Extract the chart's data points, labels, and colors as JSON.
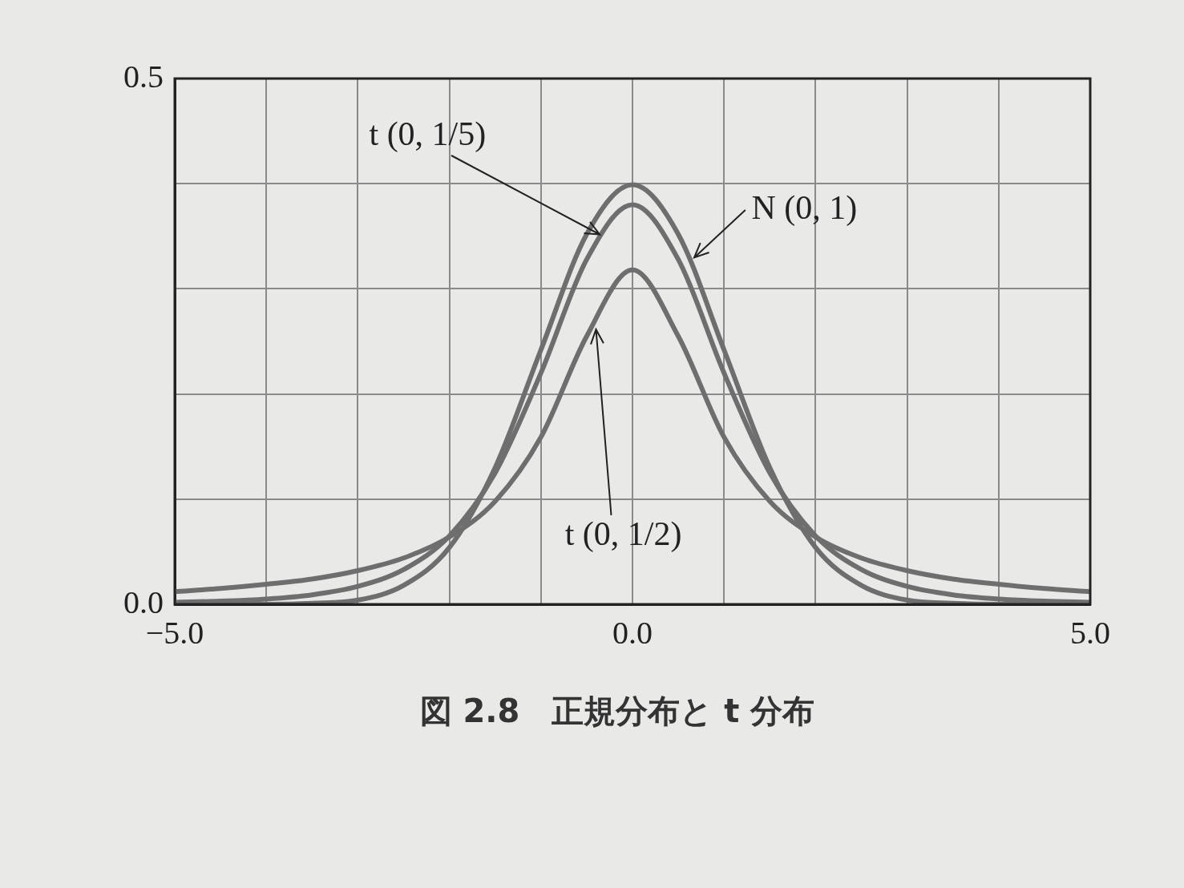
{
  "chart_data": {
    "type": "line",
    "title": "図 2.8　正規分布と t 分布",
    "x": [
      -5,
      -4.5,
      -4,
      -3.5,
      -3,
      -2.5,
      -2,
      -1.5,
      -1,
      -0.5,
      0,
      0.5,
      1,
      1.5,
      2,
      2.5,
      3,
      3.5,
      4,
      4.5,
      5
    ],
    "series": [
      {
        "name": "N (0, 1)",
        "color": "#6e6e6e",
        "values": [
          0.0,
          0.0,
          0.0,
          0.001,
          0.004,
          0.018,
          0.054,
          0.13,
          0.242,
          0.352,
          0.399,
          0.352,
          0.242,
          0.13,
          0.054,
          0.018,
          0.004,
          0.001,
          0.0,
          0.0,
          0.0
        ]
      },
      {
        "name": "t (0, 1/5)",
        "color": "#6e6e6e",
        "values": [
          0.002,
          0.003,
          0.005,
          0.009,
          0.017,
          0.033,
          0.065,
          0.125,
          0.22,
          0.328,
          0.38,
          0.328,
          0.22,
          0.125,
          0.065,
          0.033,
          0.017,
          0.009,
          0.005,
          0.003,
          0.002
        ]
      },
      {
        "name": "t (0, 1/2)",
        "color": "#6e6e6e",
        "values": [
          0.012,
          0.015,
          0.019,
          0.024,
          0.032,
          0.044,
          0.064,
          0.098,
          0.159,
          0.255,
          0.318,
          0.255,
          0.159,
          0.098,
          0.064,
          0.044,
          0.032,
          0.024,
          0.019,
          0.015,
          0.012
        ]
      }
    ],
    "xlim": [
      -5,
      5
    ],
    "ylim": [
      0,
      0.5
    ],
    "xticks": [
      {
        "value": -5,
        "label": "−5.0"
      },
      {
        "value": -4,
        "label": null
      },
      {
        "value": -3,
        "label": null
      },
      {
        "value": -2,
        "label": null
      },
      {
        "value": -1,
        "label": null
      },
      {
        "value": 0,
        "label": "0.0"
      },
      {
        "value": 1,
        "label": null
      },
      {
        "value": 2,
        "label": null
      },
      {
        "value": 3,
        "label": null
      },
      {
        "value": 4,
        "label": null
      },
      {
        "value": 5,
        "label": "5.0"
      }
    ],
    "yticks": [
      {
        "value": 0,
        "label": "0.0"
      },
      {
        "value": 0.1,
        "label": null
      },
      {
        "value": 0.2,
        "label": null
      },
      {
        "value": 0.3,
        "label": null
      },
      {
        "value": 0.4,
        "label": null
      },
      {
        "value": 0.5,
        "label": "0.5"
      }
    ],
    "grid": true,
    "legend": false,
    "marker": "none",
    "line_style": "solid"
  }
}
